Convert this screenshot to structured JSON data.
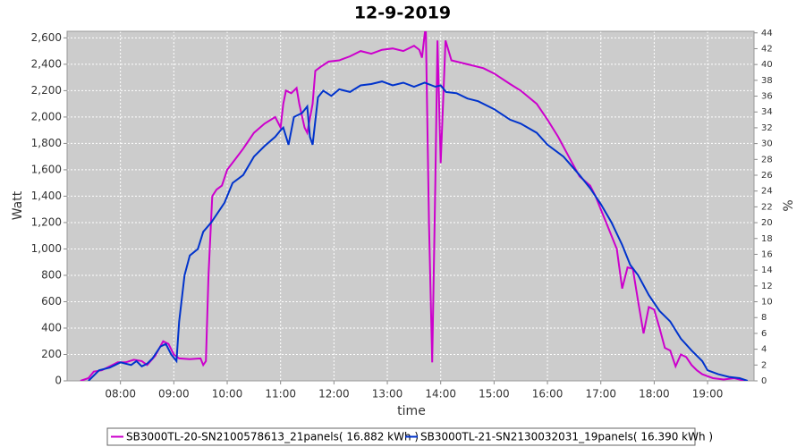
{
  "chart_data": {
    "type": "line",
    "title": "12-9-2019",
    "x_label": "time",
    "y_label": "Watt",
    "y2_label": "%",
    "xlim": [
      7.0,
      19.87
    ],
    "xticks": [
      {
        "value": 8,
        "label": "08:00"
      },
      {
        "value": 9,
        "label": "09:00"
      },
      {
        "value": 10,
        "label": "10:00"
      },
      {
        "value": 11,
        "label": "11:00"
      },
      {
        "value": 12,
        "label": "12:00"
      },
      {
        "value": 13,
        "label": "13:00"
      },
      {
        "value": 14,
        "label": "14:00"
      },
      {
        "value": 15,
        "label": "15:00"
      },
      {
        "value": 16,
        "label": "16:00"
      },
      {
        "value": 17,
        "label": "17:00"
      },
      {
        "value": 18,
        "label": "18:00"
      },
      {
        "value": 19,
        "label": "19:00"
      }
    ],
    "ylim": [
      0,
      2650
    ],
    "yticks": [
      0,
      200,
      400,
      600,
      800,
      {
        "value": 1000,
        "label": "1,000"
      },
      {
        "value": 1200,
        "label": "1,200"
      },
      {
        "value": 1400,
        "label": "1,400"
      },
      {
        "value": 1600,
        "label": "1,600"
      },
      {
        "value": 1800,
        "label": "1,800"
      },
      {
        "value": 2000,
        "label": "2,000"
      },
      {
        "value": 2200,
        "label": "2,200"
      },
      {
        "value": 2400,
        "label": "2,400"
      },
      {
        "value": 2600,
        "label": "2,600"
      }
    ],
    "y2lim": [
      0,
      44.2
    ],
    "y2ticks": [
      0,
      2,
      4,
      6,
      8,
      10,
      12,
      14,
      16,
      18,
      20,
      22,
      24,
      26,
      28,
      30,
      32,
      34,
      36,
      38,
      40,
      42,
      44
    ],
    "grid": true,
    "legend": "bottom",
    "series": [
      {
        "name": "SB3000TL-20-SN2100578613_21panels( 16.882 kWh )",
        "color": "#cc00cc",
        "x": [
          7.25,
          7.4,
          7.5,
          7.65,
          7.8,
          7.95,
          8.1,
          8.25,
          8.4,
          8.5,
          8.65,
          8.8,
          8.9,
          9.0,
          9.1,
          9.3,
          9.5,
          9.55,
          9.6,
          9.65,
          9.72,
          9.8,
          9.9,
          10.0,
          10.15,
          10.3,
          10.5,
          10.7,
          10.9,
          11.0,
          11.05,
          11.1,
          11.2,
          11.3,
          11.35,
          11.45,
          11.5,
          11.6,
          11.65,
          11.75,
          11.9,
          12.1,
          12.3,
          12.5,
          12.7,
          12.9,
          13.1,
          13.3,
          13.5,
          13.6,
          13.65,
          13.72,
          13.78,
          13.84,
          13.9,
          13.94,
          14.0,
          14.09,
          14.2,
          14.5,
          14.8,
          15.0,
          15.3,
          15.5,
          15.8,
          16.0,
          16.2,
          16.4,
          16.6,
          16.8,
          16.9,
          17.0,
          17.1,
          17.3,
          17.4,
          17.5,
          17.6,
          17.7,
          17.8,
          17.9,
          18.0,
          18.1,
          18.2,
          18.3,
          18.4,
          18.5,
          18.6,
          18.7,
          18.8,
          18.9,
          19.1,
          19.3,
          19.5,
          19.6,
          19.7
        ],
        "values": [
          0,
          20,
          70,
          80,
          110,
          140,
          140,
          160,
          150,
          120,
          190,
          300,
          280,
          200,
          170,
          165,
          170,
          120,
          150,
          800,
          1400,
          1450,
          1480,
          1600,
          1680,
          1760,
          1880,
          1950,
          2000,
          1920,
          2100,
          2200,
          2180,
          2220,
          2100,
          1920,
          1880,
          2100,
          2350,
          2380,
          2420,
          2430,
          2460,
          2500,
          2480,
          2510,
          2520,
          2500,
          2540,
          2510,
          2450,
          2700,
          1200,
          140,
          1500,
          2580,
          1650,
          2580,
          2430,
          2400,
          2370,
          2330,
          2250,
          2200,
          2100,
          1980,
          1850,
          1700,
          1550,
          1480,
          1400,
          1300,
          1200,
          1000,
          700,
          860,
          850,
          600,
          360,
          560,
          540,
          400,
          250,
          230,
          110,
          200,
          180,
          120,
          80,
          50,
          20,
          10,
          20,
          10,
          0
        ]
      },
      {
        "name": "SB3000TL-21-SN2130032031_19panels( 16.390 kWh )",
        "color": "#0033cc",
        "x": [
          7.4,
          7.6,
          7.8,
          8.0,
          8.2,
          8.3,
          8.4,
          8.5,
          8.6,
          8.75,
          8.85,
          8.95,
          9.05,
          9.1,
          9.2,
          9.3,
          9.45,
          9.55,
          9.7,
          9.8,
          9.95,
          10.1,
          10.3,
          10.5,
          10.7,
          10.9,
          11.0,
          11.05,
          11.15,
          11.25,
          11.4,
          11.5,
          11.55,
          11.6,
          11.7,
          11.8,
          11.95,
          12.1,
          12.3,
          12.5,
          12.7,
          12.9,
          13.1,
          13.3,
          13.5,
          13.7,
          13.9,
          14.0,
          14.1,
          14.3,
          14.5,
          14.7,
          15.0,
          15.3,
          15.5,
          15.8,
          16.0,
          16.3,
          16.6,
          16.8,
          17.0,
          17.2,
          17.4,
          17.55,
          17.7,
          17.9,
          18.1,
          18.3,
          18.5,
          18.7,
          18.9,
          19.0,
          19.2,
          19.4,
          19.6,
          19.75
        ],
        "values": [
          0,
          80,
          100,
          140,
          120,
          150,
          110,
          130,
          170,
          260,
          280,
          200,
          150,
          450,
          800,
          950,
          1000,
          1130,
          1200,
          1260,
          1350,
          1500,
          1560,
          1700,
          1780,
          1850,
          1900,
          1920,
          1790,
          2000,
          2030,
          2080,
          1850,
          1790,
          2150,
          2200,
          2160,
          2210,
          2190,
          2240,
          2250,
          2270,
          2240,
          2260,
          2230,
          2260,
          2230,
          2240,
          2190,
          2180,
          2140,
          2120,
          2060,
          1980,
          1950,
          1880,
          1790,
          1700,
          1560,
          1460,
          1340,
          1200,
          1030,
          880,
          800,
          650,
          530,
          450,
          320,
          230,
          150,
          80,
          50,
          30,
          20,
          0
        ]
      }
    ]
  }
}
